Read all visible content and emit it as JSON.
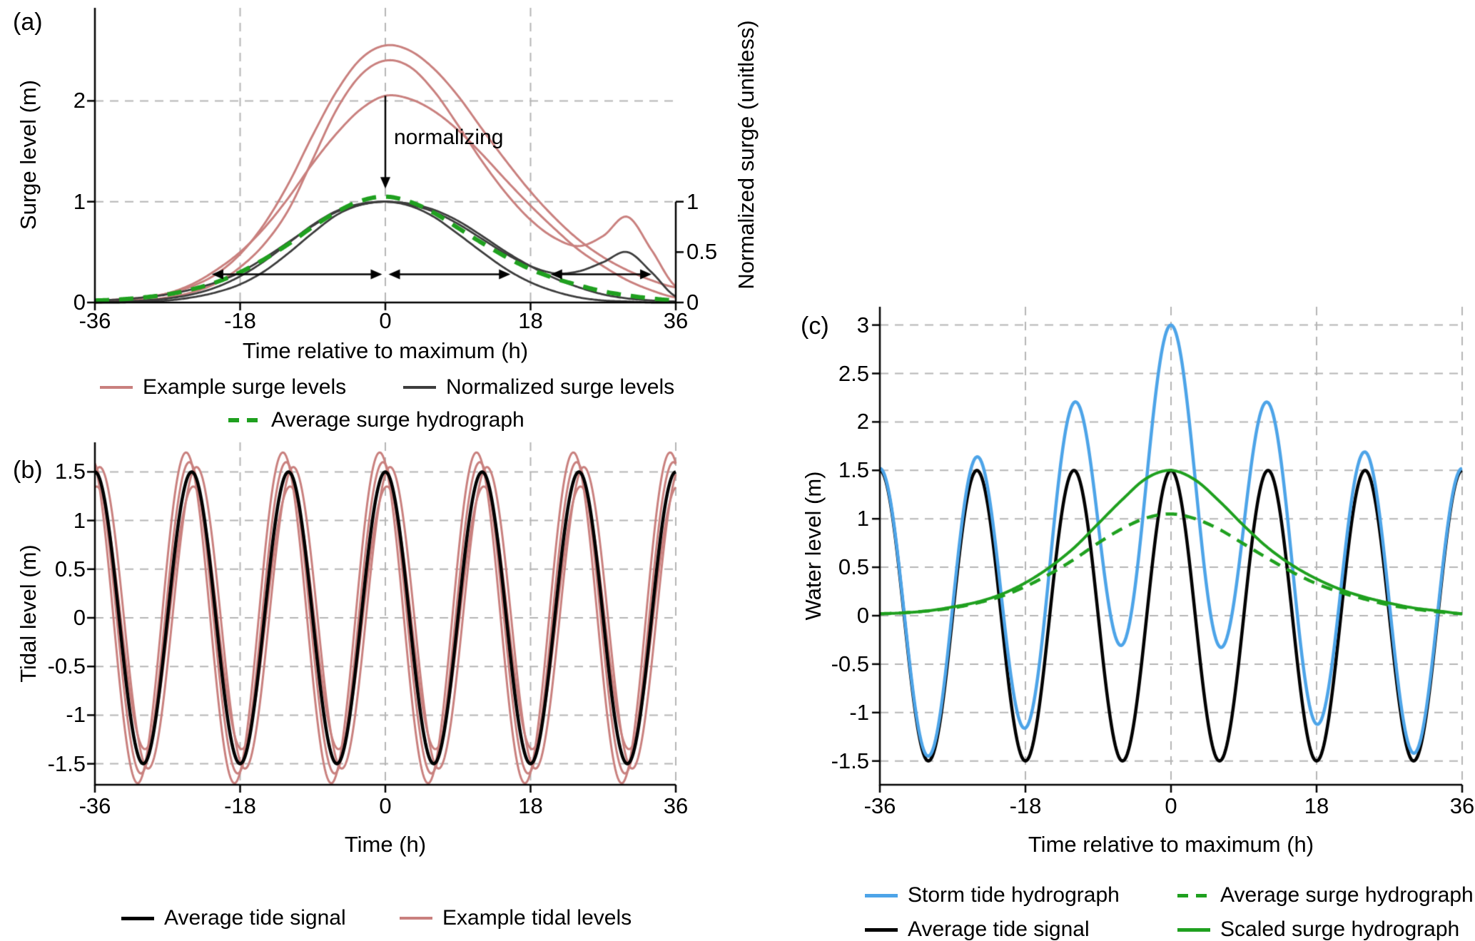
{
  "figure": {
    "bg": "#ffffff",
    "colors": {
      "example_pink": "#c9807e",
      "normalized_dark": "#3d3d3d",
      "surge_green": "#1fa01f",
      "storm_blue": "#4da4e8",
      "tide_black": "#000000",
      "grid_gray": "#b5b5b5"
    }
  },
  "panel_a": {
    "label": "(a)",
    "ylabel_left": "Surge level (m)",
    "ylabel_right": "Normalized surge (unitless)",
    "xlabel": "Time relative to maximum (h)",
    "annotation_label": "normalizing",
    "xtick_labels": [
      "-36",
      "-18",
      "0",
      "18",
      "36"
    ],
    "ytick_labels_left": [
      "0",
      "1",
      "2"
    ],
    "ytick_labels_right": [
      "0",
      "0.5",
      "1"
    ],
    "legend": [
      {
        "label": "Example surge levels",
        "color": "#c9807e",
        "dash": false,
        "weight": 4
      },
      {
        "label": "Normalized surge levels",
        "color": "#3d3d3d",
        "dash": false,
        "weight": 4
      },
      {
        "label": "Average surge hydrograph",
        "color": "#1fa01f",
        "dash": true,
        "weight": 6
      }
    ]
  },
  "panel_b": {
    "label": "(b)",
    "ylabel": "Tidal level (m)",
    "xlabel": "Time (h)",
    "xtick_labels": [
      "-36",
      "-18",
      "0",
      "18",
      "36"
    ],
    "ytick_labels": [
      "1.5",
      "1",
      "0.5",
      "0",
      "-0.5",
      "-1",
      "-1.5"
    ],
    "legend": [
      {
        "label": "Average tide signal",
        "color": "#000000",
        "dash": false,
        "weight": 5
      },
      {
        "label": "Example tidal levels",
        "color": "#c9807e",
        "dash": false,
        "weight": 4
      }
    ]
  },
  "panel_c": {
    "label": "(c)",
    "ylabel": "Water level (m)",
    "xlabel": "Time relative to maximum (h)",
    "xtick_labels": [
      "-36",
      "-18",
      "0",
      "18",
      "36"
    ],
    "ytick_labels": [
      "3",
      "2.5",
      "2",
      "1.5",
      "1",
      "0.5",
      "0",
      "-0.5",
      "-1",
      "-1.5"
    ],
    "legend": [
      {
        "label": "Storm tide hydrograph",
        "color": "#4da4e8",
        "dash": false,
        "weight": 5
      },
      {
        "label": "Average surge hydrograph",
        "color": "#1fa01f",
        "dash": true,
        "weight": 5
      },
      {
        "label": "Average tide signal",
        "color": "#000000",
        "dash": false,
        "weight": 5
      },
      {
        "label": "Scaled surge hydrograph",
        "color": "#1fa01f",
        "dash": false,
        "weight": 5
      }
    ]
  },
  "chart_data": [
    {
      "id": "a",
      "type": "line",
      "title": "",
      "xlabel": "Time relative to maximum (h)",
      "ylabel": "Surge level (m)",
      "ylabel_right": "Normalized surge (unitless)",
      "xlim": [
        -36,
        36
      ],
      "ylim": [
        0,
        2.92
      ],
      "right_ylim": [
        0,
        1
      ],
      "xticks": [
        -36,
        -18,
        0,
        18,
        36
      ],
      "yticks_left": [
        0,
        1,
        2
      ],
      "yticks_right": [
        0,
        0.5,
        1
      ],
      "right_axis_max": 1,
      "grid": true,
      "grid_x": [
        -18,
        0,
        18
      ],
      "grid_y": [
        1,
        2
      ],
      "sample_x": [
        -36,
        -33,
        -30,
        -27,
        -24,
        -21,
        -18,
        -15,
        -12,
        -9,
        -6,
        -3,
        0,
        3,
        6,
        9,
        12,
        15,
        18,
        21,
        24,
        27,
        30,
        33,
        36
      ],
      "series": [
        {
          "key": "ex1",
          "name": "Example surge level 1",
          "color": "#c9807e",
          "width": 3,
          "dash": null,
          "kind": "samples",
          "y": [
            0.02,
            0.03,
            0.05,
            0.09,
            0.16,
            0.28,
            0.48,
            0.78,
            1.18,
            1.66,
            2.1,
            2.42,
            2.55,
            2.5,
            2.32,
            2.05,
            1.72,
            1.4,
            1.1,
            0.84,
            0.62,
            0.45,
            0.32,
            0.22,
            0.15
          ]
        },
        {
          "key": "ex2",
          "name": "Example surge level 2",
          "color": "#c9807e",
          "width": 3,
          "dash": null,
          "kind": "samples",
          "y": [
            0.0,
            0.01,
            0.02,
            0.05,
            0.1,
            0.19,
            0.35,
            0.58,
            0.92,
            1.42,
            1.92,
            2.26,
            2.4,
            2.34,
            2.1,
            1.76,
            1.4,
            1.08,
            0.82,
            0.64,
            0.56,
            0.66,
            0.85,
            0.52,
            0.16
          ]
        },
        {
          "key": "ex3",
          "name": "Example surge level 3",
          "color": "#c9807e",
          "width": 3,
          "dash": null,
          "kind": "samples",
          "y": [
            0.0,
            0.02,
            0.04,
            0.09,
            0.18,
            0.32,
            0.5,
            0.74,
            1.04,
            1.38,
            1.68,
            1.92,
            2.05,
            2.02,
            1.9,
            1.71,
            1.47,
            1.21,
            0.96,
            0.73,
            0.52,
            0.36,
            0.22,
            0.12,
            0.05
          ]
        },
        {
          "key": "n1",
          "name": "Normalized surge level 1",
          "color": "#3d3d3d",
          "width": 2.8,
          "dash": null,
          "kind": "samples",
          "y": [
            0.02,
            0.03,
            0.05,
            0.08,
            0.13,
            0.2,
            0.3,
            0.44,
            0.6,
            0.76,
            0.9,
            0.97,
            1.0,
            0.97,
            0.9,
            0.78,
            0.63,
            0.48,
            0.36,
            0.29,
            0.31,
            0.4,
            0.5,
            0.3,
            0.06
          ]
        },
        {
          "key": "n2",
          "name": "Normalized surge level 2",
          "color": "#3d3d3d",
          "width": 2.8,
          "dash": null,
          "kind": "samples",
          "y": [
            0.0,
            0.0,
            0.01,
            0.02,
            0.05,
            0.1,
            0.18,
            0.31,
            0.49,
            0.69,
            0.87,
            0.97,
            1.0,
            0.96,
            0.85,
            0.68,
            0.5,
            0.33,
            0.2,
            0.11,
            0.05,
            0.02,
            0.01,
            0.0,
            0.0
          ]
        },
        {
          "key": "n3",
          "name": "Normalized surge level 3",
          "color": "#3d3d3d",
          "width": 2.8,
          "dash": null,
          "kind": "samples",
          "y": [
            0.0,
            0.01,
            0.02,
            0.04,
            0.08,
            0.15,
            0.26,
            0.41,
            0.59,
            0.77,
            0.91,
            0.98,
            1.0,
            0.98,
            0.92,
            0.81,
            0.66,
            0.5,
            0.36,
            0.24,
            0.15,
            0.08,
            0.04,
            0.02,
            0.01
          ]
        },
        {
          "key": "avg",
          "name": "Average surge hydrograph",
          "color": "#1fa01f",
          "width": 6,
          "dash": [
            20,
            14
          ],
          "kind": "samples",
          "y": [
            0.02,
            0.03,
            0.05,
            0.08,
            0.13,
            0.2,
            0.3,
            0.43,
            0.58,
            0.75,
            0.9,
            1.01,
            1.05,
            1.0,
            0.89,
            0.74,
            0.59,
            0.45,
            0.33,
            0.24,
            0.17,
            0.11,
            0.07,
            0.04,
            0.02
          ]
        }
      ],
      "annotations": {
        "normalizing_arrow": {
          "x": 0,
          "y_from": 2.05,
          "y_to": 1.13,
          "label": "normalizing"
        },
        "duration_arrows": [
          {
            "x_from": -21.5,
            "x_to": -0.4,
            "y": 0.28
          },
          {
            "x_from": 0.4,
            "x_to": 15.5,
            "y": 0.28
          },
          {
            "x_from": 20.5,
            "x_to": 33.0,
            "y": 0.28
          }
        ]
      }
    },
    {
      "id": "b",
      "type": "line",
      "title": "",
      "xlabel": "Time (h)",
      "ylabel": "Tidal level (m)",
      "xlim": [
        -36,
        36
      ],
      "ylim": [
        -1.72,
        1.8
      ],
      "xticks": [
        -36,
        -18,
        0,
        18,
        36
      ],
      "yticks": [
        1.5,
        1,
        0.5,
        0,
        -0.5,
        -1,
        -1.5
      ],
      "grid": true,
      "grid_x": [
        -18,
        0,
        18,
        36
      ],
      "grid_y": [
        -1.5,
        -1,
        -0.5,
        0,
        0.5,
        1,
        1.5
      ],
      "series": [
        {
          "key": "t1",
          "name": "Example tidal level 1",
          "color": "#c9807e",
          "width": 3,
          "dash": null,
          "kind": "harmonic",
          "amplitude": 1.7,
          "period_h": 12,
          "phase_h": -0.7
        },
        {
          "key": "t2",
          "name": "Example tidal level 2",
          "color": "#c9807e",
          "width": 3,
          "dash": null,
          "kind": "harmonic",
          "amplitude": 1.55,
          "period_h": 12,
          "phase_h": 0.6
        },
        {
          "key": "t3",
          "name": "Example tidal level 3",
          "color": "#c9807e",
          "width": 3,
          "dash": null,
          "kind": "harmonic",
          "amplitude": 1.35,
          "period_h": 12,
          "phase_h": 0.2
        },
        {
          "key": "t4",
          "name": "Example tidal level 4",
          "color": "#c9807e",
          "width": 3,
          "dash": null,
          "kind": "harmonic",
          "amplitude": 1.6,
          "period_h": 12,
          "phase_h": -0.3
        },
        {
          "key": "tide",
          "name": "Average tide signal",
          "color": "#000000",
          "width": 4.5,
          "dash": null,
          "kind": "harmonic",
          "amplitude": 1.5,
          "period_h": 12,
          "phase_h": 0
        }
      ]
    },
    {
      "id": "c",
      "type": "line",
      "title": "",
      "xlabel": "Time relative to maximum (h)",
      "ylabel": "Water level (m)",
      "xlim": [
        -36,
        36
      ],
      "ylim": [
        -1.75,
        3.19
      ],
      "xticks": [
        -36,
        -18,
        0,
        18,
        36
      ],
      "yticks": [
        3,
        2.5,
        2,
        1.5,
        1,
        0.5,
        0,
        -0.5,
        -1,
        -1.5
      ],
      "grid": true,
      "grid_x": [
        -18,
        0,
        18,
        36
      ],
      "grid_y": [
        -1.5,
        -1,
        -0.5,
        0,
        0.5,
        1,
        1.5,
        2,
        2.5,
        3
      ],
      "sample_x": [
        -36,
        -33,
        -30,
        -27,
        -24,
        -21,
        -18,
        -15,
        -12,
        -9,
        -6,
        -3,
        0,
        3,
        6,
        9,
        12,
        15,
        18,
        21,
        24,
        27,
        30,
        33,
        36
      ],
      "series": [
        {
          "key": "tide",
          "name": "Average tide signal",
          "color": "#000000",
          "width": 4.5,
          "dash": null,
          "kind": "harmonic",
          "amplitude": 1.5,
          "period_h": 12,
          "phase_h": 0
        },
        {
          "key": "storm",
          "name": "Storm tide hydrograph",
          "color": "#4da4e8",
          "width": 4.5,
          "dash": null,
          "kind": "sum",
          "components": [
            "tide",
            "scaled"
          ]
        },
        {
          "key": "scaled",
          "name": "Scaled surge hydrograph",
          "color": "#1fa01f",
          "width": 4,
          "dash": null,
          "kind": "samples",
          "y": [
            0.02,
            0.03,
            0.05,
            0.09,
            0.14,
            0.22,
            0.34,
            0.5,
            0.7,
            0.95,
            1.2,
            1.42,
            1.5,
            1.4,
            1.18,
            0.93,
            0.7,
            0.52,
            0.38,
            0.27,
            0.19,
            0.13,
            0.08,
            0.05,
            0.02
          ]
        },
        {
          "key": "avg",
          "name": "Average surge hydrograph",
          "color": "#1fa01f",
          "width": 4.5,
          "dash": [
            16,
            11
          ],
          "kind": "samples",
          "y": [
            0.02,
            0.03,
            0.05,
            0.08,
            0.13,
            0.2,
            0.3,
            0.43,
            0.58,
            0.75,
            0.9,
            1.01,
            1.05,
            1.0,
            0.89,
            0.74,
            0.59,
            0.45,
            0.33,
            0.24,
            0.17,
            0.11,
            0.07,
            0.04,
            0.02
          ]
        }
      ]
    }
  ]
}
